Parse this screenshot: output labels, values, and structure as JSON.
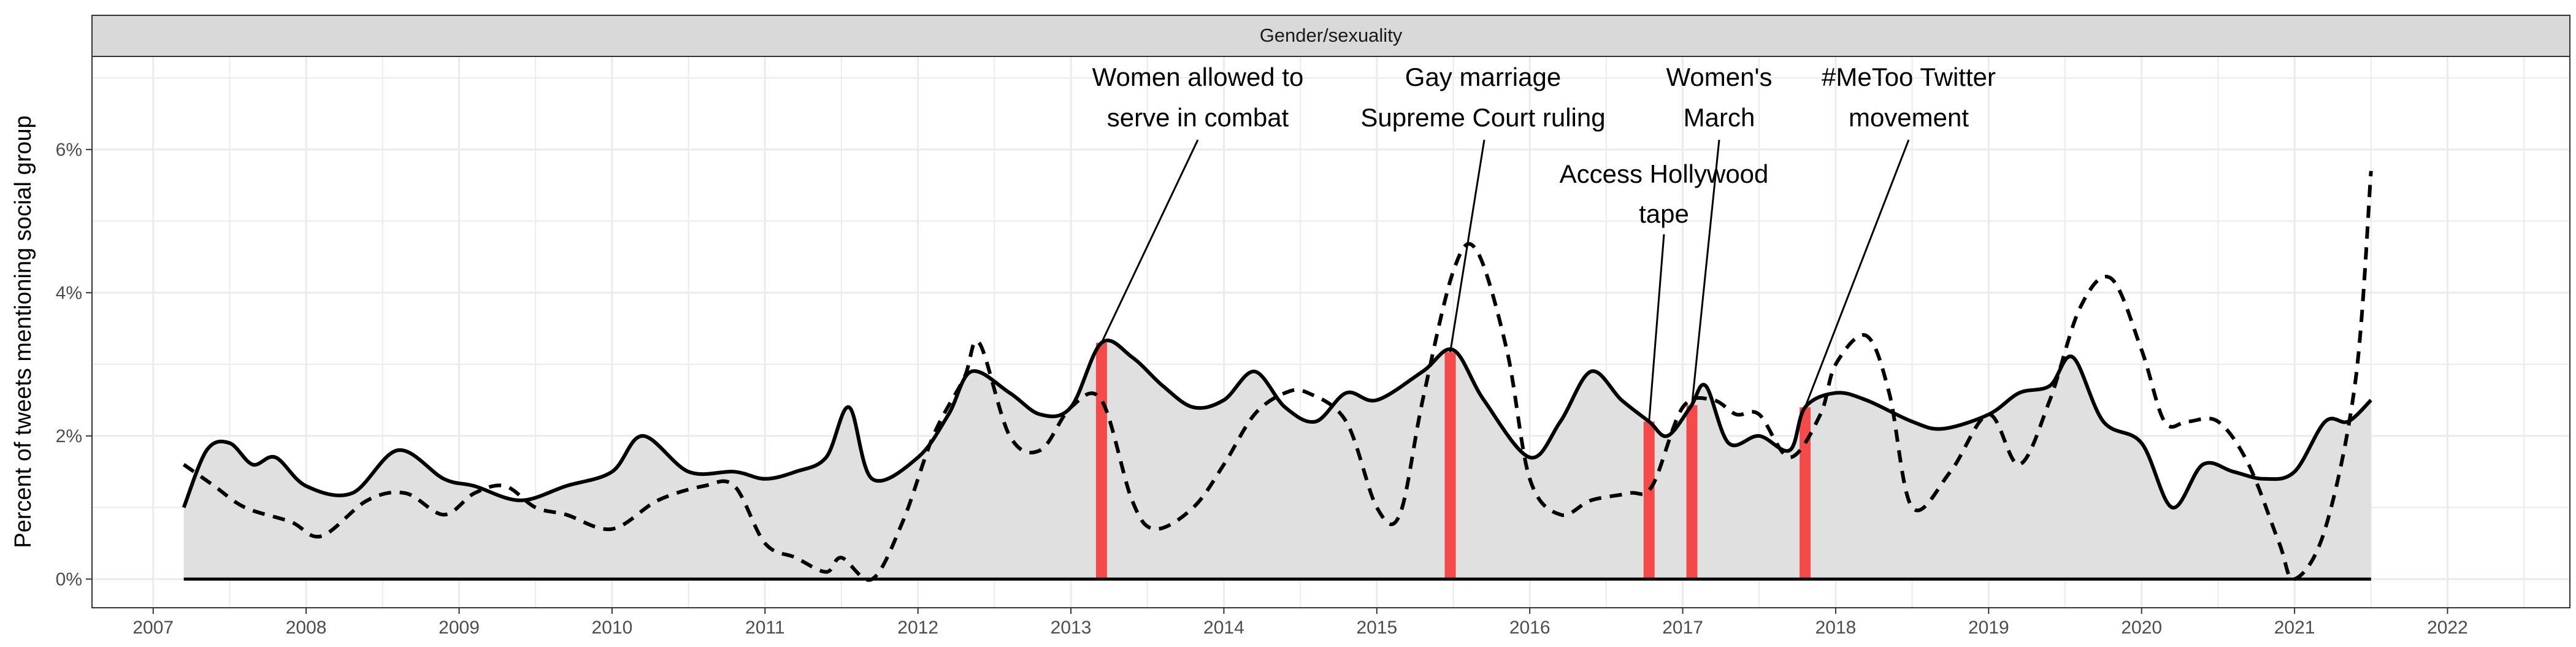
{
  "chart_data": {
    "type": "line",
    "facet_label": "Gender/sexuality",
    "ylabel": "Percent of tweets mentioning social group",
    "xlabel": "",
    "xlim": [
      2006.6,
      2022.8
    ],
    "ylim": [
      -0.4,
      7.3
    ],
    "x_ticks": [
      2007,
      2008,
      2009,
      2010,
      2011,
      2012,
      2013,
      2014,
      2015,
      2016,
      2017,
      2018,
      2019,
      2020,
      2021,
      2022
    ],
    "y_ticks": [
      {
        "value": 0,
        "label": "0%"
      },
      {
        "value": 2,
        "label": "2%"
      },
      {
        "value": 4,
        "label": "4%"
      },
      {
        "value": 6,
        "label": "6%"
      }
    ],
    "grid": true,
    "series": [
      {
        "style": "solid",
        "x": [
          2007.2,
          2007.35,
          2007.5,
          2007.65,
          2007.8,
          2008.0,
          2008.3,
          2008.6,
          2008.9,
          2009.1,
          2009.4,
          2009.7,
          2010.0,
          2010.2,
          2010.5,
          2010.8,
          2011.0,
          2011.2,
          2011.4,
          2011.55,
          2011.7,
          2012.0,
          2012.2,
          2012.35,
          2012.6,
          2012.8,
          2013.0,
          2013.2,
          2013.4,
          2013.6,
          2013.8,
          2014.0,
          2014.2,
          2014.4,
          2014.6,
          2014.8,
          2015.0,
          2015.3,
          2015.5,
          2015.7,
          2016.0,
          2016.2,
          2016.4,
          2016.6,
          2016.78,
          2016.9,
          2017.05,
          2017.15,
          2017.3,
          2017.5,
          2017.7,
          2017.8,
          2018.0,
          2018.2,
          2018.5,
          2018.7,
          2019.0,
          2019.2,
          2019.4,
          2019.55,
          2019.75,
          2020.0,
          2020.2,
          2020.4,
          2020.6,
          2020.8,
          2021.0,
          2021.2,
          2021.35,
          2021.5
        ],
        "values": [
          1.0,
          1.8,
          1.9,
          1.6,
          1.7,
          1.3,
          1.2,
          1.8,
          1.4,
          1.3,
          1.1,
          1.3,
          1.5,
          2.0,
          1.5,
          1.5,
          1.4,
          1.5,
          1.7,
          2.4,
          1.4,
          1.7,
          2.3,
          2.9,
          2.6,
          2.3,
          2.4,
          3.3,
          3.1,
          2.7,
          2.4,
          2.5,
          2.9,
          2.4,
          2.2,
          2.6,
          2.5,
          2.9,
          3.2,
          2.5,
          1.7,
          2.2,
          2.9,
          2.5,
          2.2,
          2.0,
          2.4,
          2.7,
          1.9,
          2.0,
          1.8,
          2.4,
          2.6,
          2.5,
          2.2,
          2.1,
          2.3,
          2.6,
          2.7,
          3.1,
          2.2,
          1.9,
          1.0,
          1.6,
          1.5,
          1.4,
          1.5,
          2.2,
          2.2,
          2.5
        ]
      },
      {
        "style": "dashed",
        "x": [
          2007.2,
          2007.4,
          2007.6,
          2007.9,
          2008.1,
          2008.4,
          2008.65,
          2008.9,
          2009.1,
          2009.3,
          2009.5,
          2009.7,
          2010.0,
          2010.3,
          2010.6,
          2010.8,
          2011.0,
          2011.2,
          2011.4,
          2011.5,
          2011.7,
          2011.9,
          2012.1,
          2012.3,
          2012.4,
          2012.6,
          2012.8,
          2013.0,
          2013.2,
          2013.4,
          2013.55,
          2013.8,
          2014.0,
          2014.2,
          2014.4,
          2014.55,
          2014.8,
          2015.0,
          2015.15,
          2015.3,
          2015.5,
          2015.65,
          2015.85,
          2016.0,
          2016.2,
          2016.4,
          2016.65,
          2016.8,
          2017.0,
          2017.2,
          2017.35,
          2017.5,
          2017.7,
          2017.9,
          2018.0,
          2018.2,
          2018.35,
          2018.5,
          2018.75,
          2019.0,
          2019.2,
          2019.4,
          2019.6,
          2019.8,
          2020.0,
          2020.15,
          2020.3,
          2020.5,
          2020.7,
          2020.9,
          2021.0,
          2021.2,
          2021.4,
          2021.5
        ],
        "values": [
          1.6,
          1.3,
          1.0,
          0.8,
          0.6,
          1.1,
          1.2,
          0.9,
          1.2,
          1.3,
          1.0,
          0.9,
          0.7,
          1.1,
          1.3,
          1.3,
          0.5,
          0.3,
          0.1,
          0.3,
          0.0,
          0.8,
          2.0,
          2.8,
          3.3,
          2.0,
          1.8,
          2.4,
          2.5,
          1.1,
          0.7,
          1.0,
          1.6,
          2.3,
          2.6,
          2.6,
          2.2,
          1.0,
          0.9,
          2.5,
          4.3,
          4.6,
          3.2,
          1.4,
          0.9,
          1.1,
          1.2,
          1.3,
          2.4,
          2.5,
          2.3,
          2.3,
          1.7,
          2.3,
          3.0,
          3.4,
          2.6,
          1.0,
          1.5,
          2.3,
          1.6,
          2.5,
          3.8,
          4.2,
          3.2,
          2.2,
          2.2,
          2.2,
          1.6,
          0.5,
          0.0,
          0.7,
          2.8,
          5.7
        ]
      }
    ],
    "events": [
      {
        "x": 2013.2,
        "label_lines": [
          "Women allowed to",
          "serve in combat"
        ]
      },
      {
        "x": 2015.48,
        "label_lines": [
          "Gay marriage",
          "Supreme Court ruling"
        ]
      },
      {
        "x": 2016.78,
        "label_lines": [
          "Access Hollywood",
          "tape"
        ]
      },
      {
        "x": 2017.06,
        "label_lines": [
          "Women's",
          "March"
        ]
      },
      {
        "x": 2017.8,
        "label_lines": [
          "#MeToo Twitter",
          "movement"
        ]
      }
    ],
    "colors": {
      "panel_bg": "#ffffff",
      "strip_bg": "#d9d9d9",
      "grid": "#ebebeb",
      "area_fill": "#e0e0e0",
      "line": "#000000",
      "event_bar": "#f44a4a"
    }
  }
}
